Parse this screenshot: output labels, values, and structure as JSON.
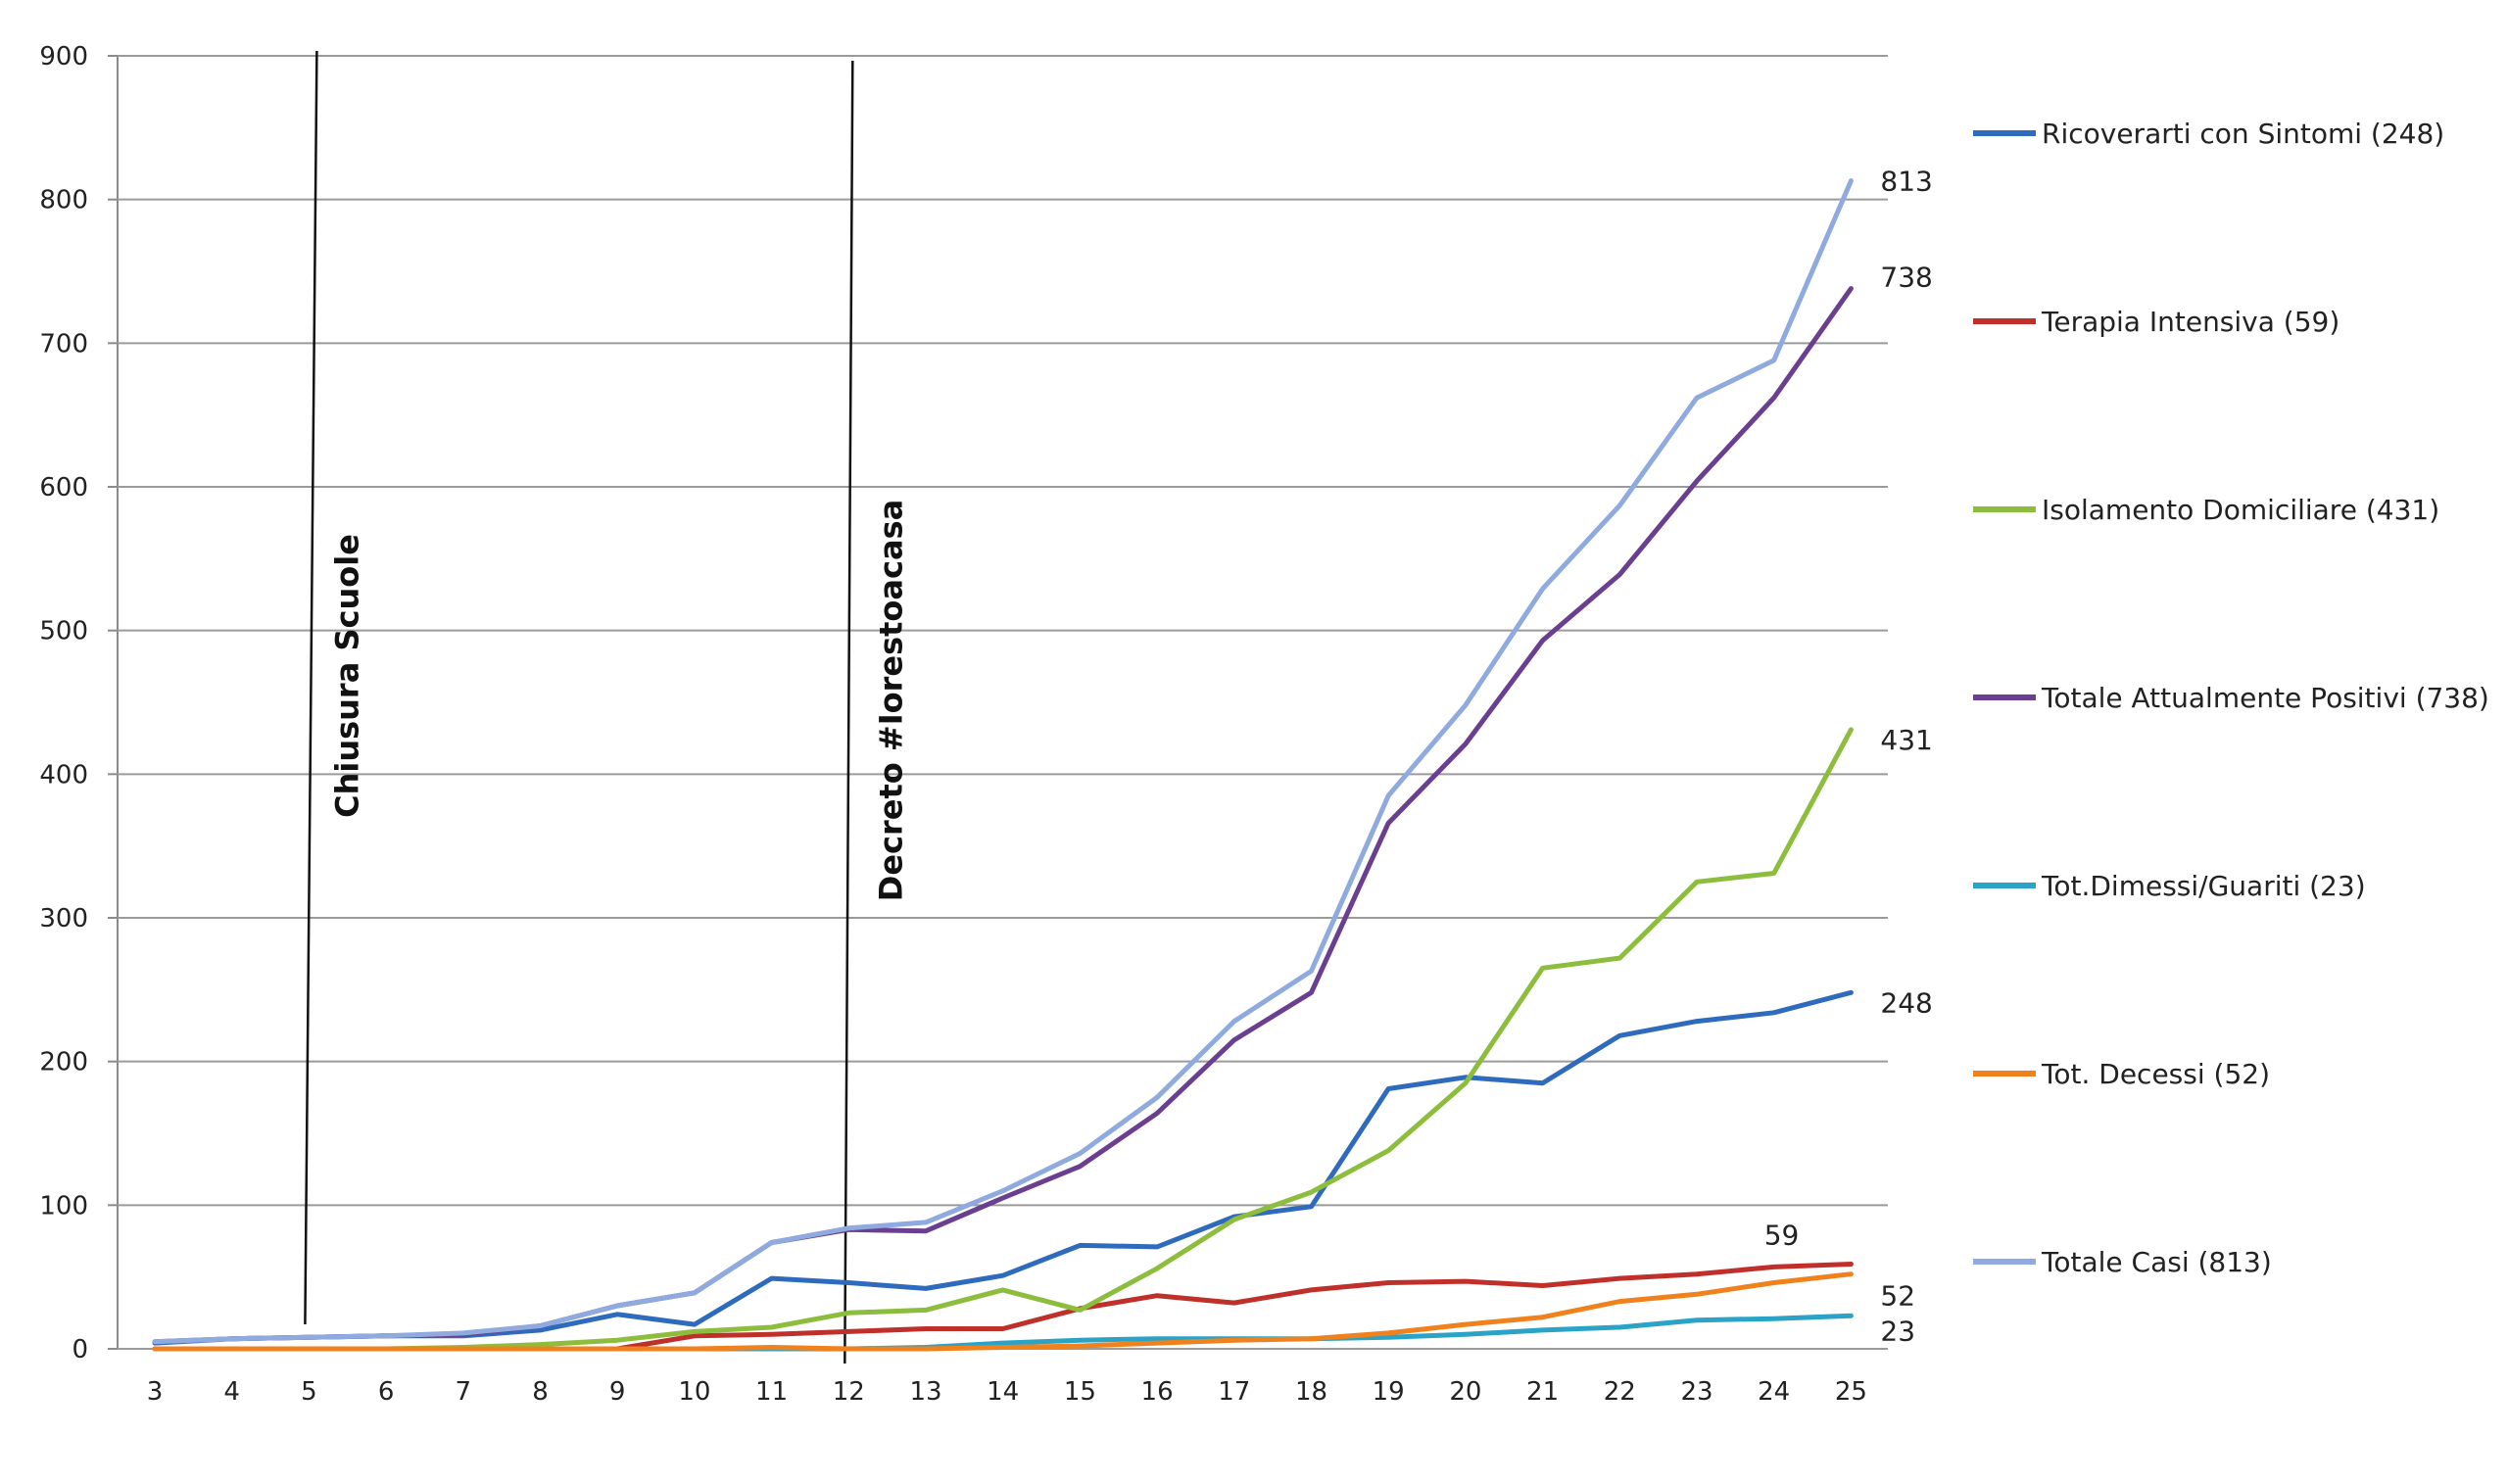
{
  "chart_data": {
    "type": "line",
    "title": "",
    "xlabel": "",
    "ylabel": "",
    "x": [
      3,
      4,
      5,
      6,
      7,
      8,
      9,
      10,
      11,
      12,
      13,
      14,
      15,
      16,
      17,
      18,
      19,
      20,
      21,
      22,
      23,
      24,
      25
    ],
    "ylim": [
      0,
      900
    ],
    "yticks": [
      0,
      100,
      200,
      300,
      400,
      500,
      600,
      700,
      800,
      900
    ],
    "grid": true,
    "legend_position": "right",
    "series": [
      {
        "name": "Ricoverarti con Sintomi (248)",
        "color": "#2e6bbd",
        "values": [
          4,
          7,
          8,
          9,
          9,
          13,
          24,
          17,
          49,
          46,
          42,
          51,
          72,
          71,
          92,
          99,
          181,
          189,
          185,
          218,
          228,
          234,
          248
        ]
      },
      {
        "name": "Terapia Intensiva (59)",
        "color": "#c0302b",
        "values": [
          0,
          0,
          0,
          0,
          0,
          0,
          0,
          9,
          10,
          12,
          14,
          14,
          28,
          37,
          32,
          41,
          46,
          47,
          44,
          49,
          52,
          57,
          59
        ]
      },
      {
        "name": "Isolamento Domiciliare (431)",
        "color": "#8dbd3c",
        "values": [
          0,
          0,
          0,
          0,
          1,
          3,
          6,
          12,
          15,
          25,
          27,
          41,
          27,
          56,
          90,
          109,
          138,
          185,
          265,
          272,
          325,
          331,
          431
        ]
      },
      {
        "name": "Totale Attualmente Positivi (738)",
        "color": "#6a3f8f",
        "values": [
          5,
          7,
          8,
          9,
          10,
          16,
          30,
          39,
          74,
          83,
          82,
          105,
          127,
          164,
          215,
          248,
          366,
          421,
          493,
          539,
          604,
          662,
          738
        ]
      },
      {
        "name": "Tot.Dimessi/Guariti (23)",
        "color": "#2aa3c6",
        "values": [
          0,
          0,
          0,
          0,
          0,
          0,
          0,
          0,
          0,
          0,
          1,
          4,
          6,
          7,
          7,
          7,
          8,
          10,
          13,
          15,
          20,
          21,
          23
        ]
      },
      {
        "name": "Tot. Decessi (52)",
        "color": "#f0821e",
        "values": [
          0,
          0,
          0,
          0,
          0,
          0,
          0,
          0,
          1,
          0,
          0,
          1,
          2,
          4,
          6,
          7,
          11,
          17,
          22,
          33,
          38,
          46,
          52
        ]
      },
      {
        "name": "Totale Casi (813)",
        "color": "#8faadf",
        "values": [
          5,
          7,
          8,
          9,
          11,
          16,
          30,
          39,
          74,
          84,
          88,
          110,
          136,
          175,
          228,
          263,
          385,
          448,
          529,
          587,
          662,
          688,
          813
        ]
      }
    ],
    "data_labels": [
      {
        "text": "813",
        "x": 25,
        "y": 813,
        "series": "Totale Casi (813)"
      },
      {
        "text": "738",
        "x": 25,
        "y": 738,
        "series": "Totale Attualmente Positivi (738)"
      },
      {
        "text": "431",
        "x": 25,
        "y": 431,
        "series": "Isolamento Domiciliare (431)"
      },
      {
        "text": "248",
        "x": 25,
        "y": 248,
        "series": "Ricoverarti con Sintomi (248)"
      },
      {
        "text": "59",
        "x": 24,
        "y": 59,
        "series": "Terapia Intensiva (59)"
      },
      {
        "text": "52",
        "x": 25,
        "y": 52,
        "series": "Tot. Decessi (52)"
      },
      {
        "text": "23",
        "x": 25,
        "y": 23,
        "series": "Tot.Dimessi/Guariti (23)"
      }
    ],
    "annotations": [
      {
        "text": "Chiusura  Scuole",
        "x": 5
      },
      {
        "text": "Decreto  #Iorestoacasa",
        "x": 12
      }
    ]
  }
}
